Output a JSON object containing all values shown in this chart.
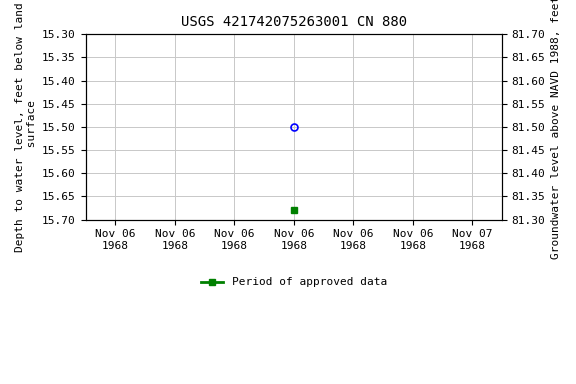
{
  "title": "USGS 421742075263001 CN 880",
  "left_ylabel": "Depth to water level, feet below land\n surface",
  "right_ylabel": "Groundwater level above NAVD 1988, feet",
  "ylim_left_top": 15.3,
  "ylim_left_bottom": 15.7,
  "ylim_right_top": 81.7,
  "ylim_right_bottom": 81.3,
  "yticks_left": [
    15.3,
    15.35,
    15.4,
    15.45,
    15.5,
    15.55,
    15.6,
    15.65,
    15.7
  ],
  "yticks_right": [
    81.7,
    81.65,
    81.6,
    81.55,
    81.5,
    81.45,
    81.4,
    81.35,
    81.3
  ],
  "blue_point_x": 0.0,
  "blue_point_y": 15.5,
  "green_point_x": 0.0,
  "green_point_y": 15.68,
  "background_color": "#ffffff",
  "grid_color": "#c8c8c8",
  "title_fontsize": 10,
  "axis_label_fontsize": 8,
  "tick_fontsize": 8,
  "legend_label": "Period of approved data",
  "x_tick_labels": [
    "Nov 06\n1968",
    "Nov 06\n1968",
    "Nov 06\n1968",
    "Nov 06\n1968",
    "Nov 06\n1968",
    "Nov 06\n1968",
    "Nov 07\n1968"
  ],
  "x_tick_positions": [
    -3,
    -2,
    -1,
    0,
    1,
    2,
    3
  ],
  "xlim": [
    -3.5,
    3.5
  ]
}
